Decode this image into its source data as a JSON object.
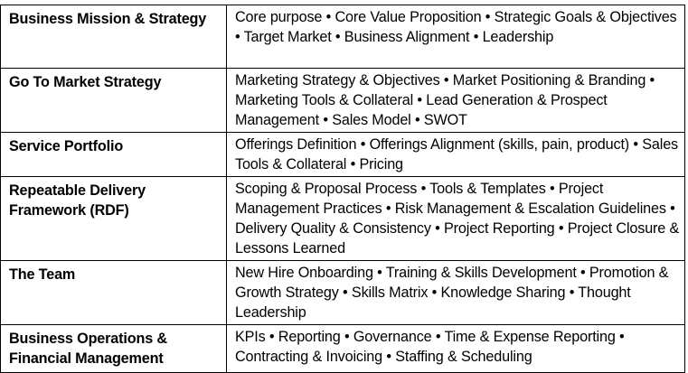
{
  "rows": [
    {
      "category": "Business Mission & Strategy",
      "details": "Core purpose • Core Value Proposition • Strategic Goals & Objectives • Target Market • Business Alignment • Leadership"
    },
    {
      "category": "Go To Market Strategy",
      "details": "Marketing Strategy & Objectives • Market Positioning & Branding • Marketing Tools & Collateral • Lead Generation & Prospect Management • Sales Model • SWOT"
    },
    {
      "category": "Service Portfolio",
      "details": "Offerings Definition • Offerings Alignment (skills, pain, product) • Sales Tools & Collateral • Pricing"
    },
    {
      "category": "Repeatable Delivery Framework (RDF)",
      "details": "Scoping & Proposal Process • Tools & Templates • Project Management Practices • Risk Management & Escalation Guidelines • Delivery Quality & Consistency • Project Reporting • Project Closure & Lessons Learned"
    },
    {
      "category": "The Team",
      "details": "New Hire Onboarding • Training & Skills Development • Promotion & Growth Strategy • Skills Matrix • Knowledge Sharing • Thought Leadership"
    },
    {
      "category": "Business Operations & Financial Management",
      "details": "KPIs • Reporting • Governance • Time & Expense Reporting • Contracting & Invoicing • Staffing & Scheduling"
    }
  ]
}
